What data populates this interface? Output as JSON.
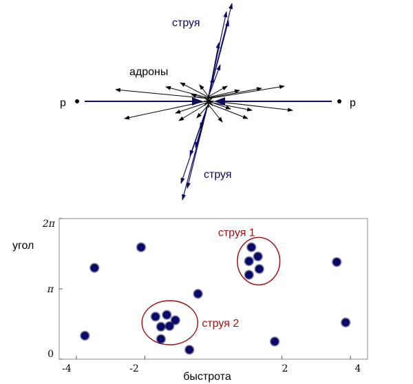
{
  "top_diagram": {
    "proton_left_label": "p",
    "proton_right_label": "p",
    "hadrons_label": "адроны",
    "jet_top_label": "струя",
    "jet_bottom_label": "струя"
  },
  "chart_data": {
    "type": "scatter",
    "xlabel": "быстрота",
    "ylabel": "угол",
    "xlim": [
      -4.5,
      4.5
    ],
    "ylim": [
      0,
      6.2832
    ],
    "x_ticks": [
      "-4",
      "-2",
      "2",
      "4"
    ],
    "x_tick_values": [
      -4,
      -2,
      2,
      4
    ],
    "y_ticks": [
      "0",
      "π",
      "2π"
    ],
    "y_tick_values": [
      0,
      3.1416,
      6.2832
    ],
    "particle_color": "#0a0a60",
    "annotation_color": "#a01010",
    "annotations": [
      {
        "label": "струя 1",
        "center_x": 1.32,
        "center_y": 4.38,
        "span_x": 1.24,
        "span_y": 2.12
      },
      {
        "label": "струя 2",
        "center_x": -1.27,
        "center_y": 1.63,
        "span_x": 1.63,
        "span_y": 1.97
      }
    ],
    "points": [
      {
        "x": -2.11,
        "y": 5.0
      },
      {
        "x": -3.47,
        "y": 4.08
      },
      {
        "x": 1.11,
        "y": 5.0
      },
      {
        "x": 1.3,
        "y": 4.59
      },
      {
        "x": 1.04,
        "y": 4.38
      },
      {
        "x": 1.34,
        "y": 4.03
      },
      {
        "x": 1.04,
        "y": 3.77
      },
      {
        "x": 3.6,
        "y": 4.34
      },
      {
        "x": -0.45,
        "y": 2.92
      },
      {
        "x": -1.69,
        "y": 1.9
      },
      {
        "x": -1.36,
        "y": 1.98
      },
      {
        "x": -1.11,
        "y": 1.74
      },
      {
        "x": -1.53,
        "y": 1.45
      },
      {
        "x": -1.28,
        "y": 1.48
      },
      {
        "x": -1.53,
        "y": 0.9
      },
      {
        "x": -3.75,
        "y": 1.05
      },
      {
        "x": -0.7,
        "y": 0.42
      },
      {
        "x": 1.79,
        "y": 0.79
      },
      {
        "x": 3.86,
        "y": 1.64
      }
    ]
  }
}
